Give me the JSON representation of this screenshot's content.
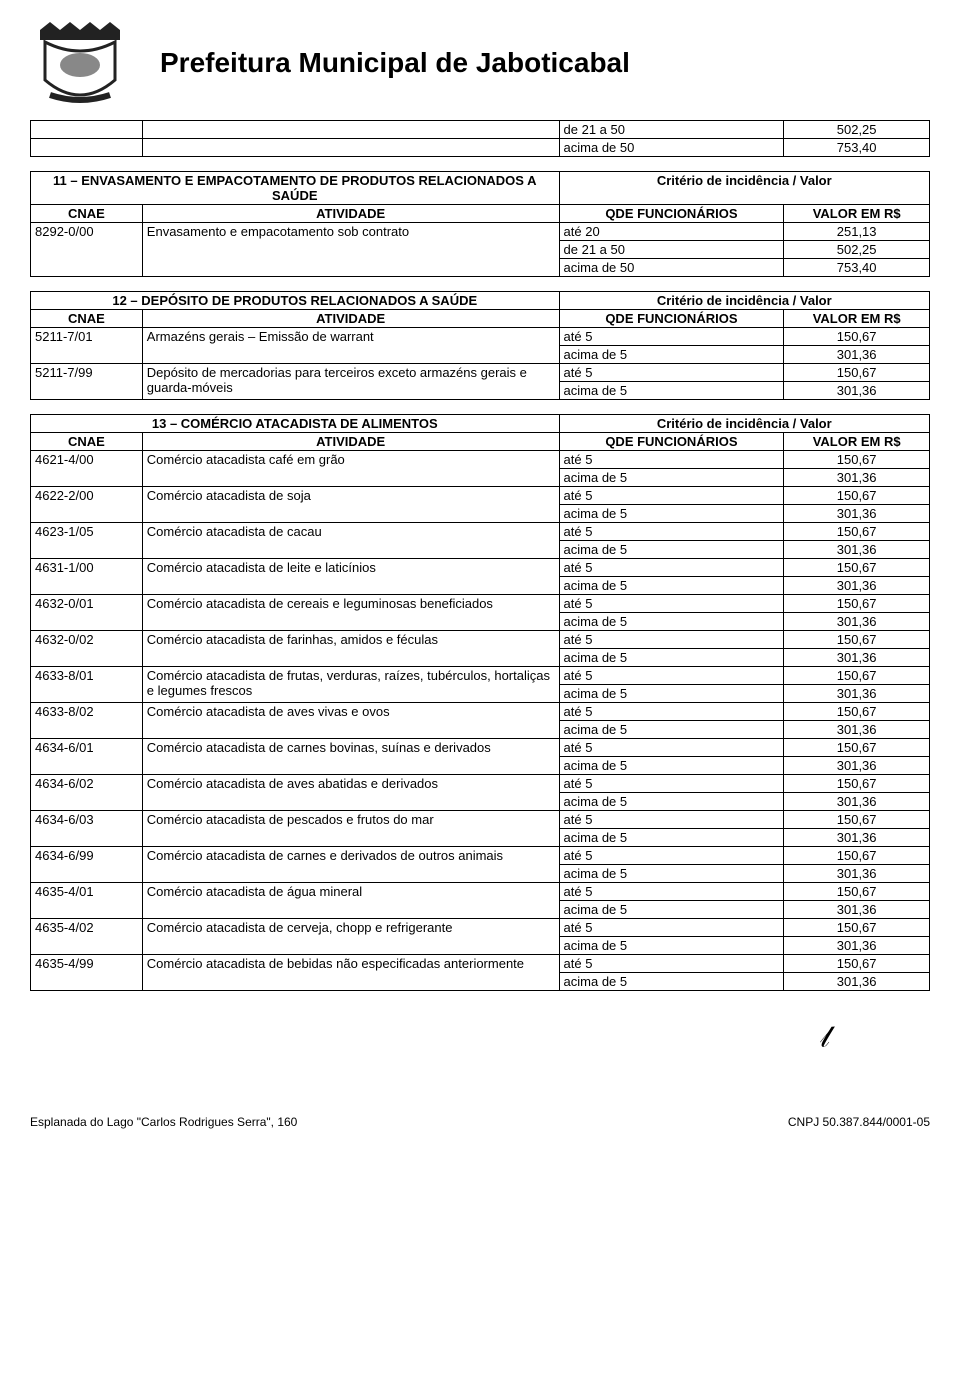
{
  "header": {
    "title": "Prefeitura Municipal de Jaboticabal"
  },
  "topFragment": {
    "rows": [
      {
        "qde": "de 21 a 50",
        "valor": "502,25"
      },
      {
        "qde": "acima de 50",
        "valor": "753,40"
      }
    ]
  },
  "blocks": [
    {
      "sectionTitle": "11 – ENVASAMENTO E EMPACOTAMENTO DE PRODUTOS RELACIONADOS A SAÚDE",
      "criterio": "Critério de incidência / Valor",
      "headers": {
        "cnae": "CNAE",
        "atividade": "ATIVIDADE",
        "qde": "QDE FUNCIONÁRIOS",
        "valor": "VALOR EM R$"
      },
      "rows": [
        {
          "cnae": "8292-0/00",
          "atividade": "Envasamento e empacotamento sob contrato",
          "tiers": [
            {
              "qde": "até 20",
              "valor": "251,13"
            },
            {
              "qde": "de 21 a 50",
              "valor": "502,25"
            },
            {
              "qde": "acima de 50",
              "valor": "753,40"
            }
          ]
        }
      ]
    },
    {
      "sectionTitle": "12 – DEPÓSITO DE PRODUTOS RELACIONADOS A SAÚDE",
      "criterio": "Critério de incidência / Valor",
      "headers": {
        "cnae": "CNAE",
        "atividade": "ATIVIDADE",
        "qde": "QDE FUNCIONÁRIOS",
        "valor": "VALOR EM R$"
      },
      "rows": [
        {
          "cnae": "5211-7/01",
          "atividade": "Armazéns gerais – Emissão de warrant",
          "tiers": [
            {
              "qde": "até 5",
              "valor": "150,67"
            },
            {
              "qde": "acima de 5",
              "valor": "301,36"
            }
          ]
        },
        {
          "cnae": "5211-7/99",
          "atividade": "Depósito de mercadorias para terceiros exceto armazéns gerais e guarda-móveis",
          "tiers": [
            {
              "qde": "até 5",
              "valor": "150,67"
            },
            {
              "qde": "acima de 5",
              "valor": "301,36"
            }
          ]
        }
      ]
    },
    {
      "sectionTitle": "13 – COMÉRCIO ATACADISTA DE ALIMENTOS",
      "criterio": "Critério de incidência / Valor",
      "headers": {
        "cnae": "CNAE",
        "atividade": "ATIVIDADE",
        "qde": "QDE FUNCIONÁRIOS",
        "valor": "VALOR EM R$"
      },
      "rows": [
        {
          "cnae": "4621-4/00",
          "atividade": "Comércio atacadista café em grão",
          "tiers": [
            {
              "qde": "até 5",
              "valor": "150,67"
            },
            {
              "qde": "acima de 5",
              "valor": "301,36"
            }
          ]
        },
        {
          "cnae": "4622-2/00",
          "atividade": "Comércio atacadista de soja",
          "tiers": [
            {
              "qde": "até 5",
              "valor": "150,67"
            },
            {
              "qde": "acima de 5",
              "valor": "301,36"
            }
          ]
        },
        {
          "cnae": "4623-1/05",
          "atividade": "Comércio atacadista de cacau",
          "tiers": [
            {
              "qde": "até 5",
              "valor": "150,67"
            },
            {
              "qde": "acima de 5",
              "valor": "301,36"
            }
          ]
        },
        {
          "cnae": "4631-1/00",
          "atividade": "Comércio atacadista de leite e laticínios",
          "tiers": [
            {
              "qde": "até 5",
              "valor": "150,67"
            },
            {
              "qde": "acima de 5",
              "valor": "301,36"
            }
          ]
        },
        {
          "cnae": "4632-0/01",
          "atividade": "Comércio atacadista de cereais e leguminosas beneficiados",
          "tiers": [
            {
              "qde": "até 5",
              "valor": "150,67"
            },
            {
              "qde": "acima de 5",
              "valor": "301,36"
            }
          ]
        },
        {
          "cnae": "4632-0/02",
          "atividade": "Comércio atacadista de farinhas, amidos e féculas",
          "tiers": [
            {
              "qde": "até 5",
              "valor": "150,67"
            },
            {
              "qde": "acima de 5",
              "valor": "301,36"
            }
          ]
        },
        {
          "cnae": "4633-8/01",
          "atividade": "Comércio atacadista de frutas, verduras, raízes, tubérculos, hortaliças e legumes frescos",
          "tiers": [
            {
              "qde": "até 5",
              "valor": "150,67"
            },
            {
              "qde": "acima de 5",
              "valor": "301,36"
            }
          ]
        },
        {
          "cnae": "4633-8/02",
          "atividade": "Comércio atacadista de aves vivas e ovos",
          "tiers": [
            {
              "qde": "até 5",
              "valor": "150,67"
            },
            {
              "qde": "acima de 5",
              "valor": "301,36"
            }
          ]
        },
        {
          "cnae": "4634-6/01",
          "atividade": "Comércio atacadista de carnes bovinas, suínas e derivados",
          "tiers": [
            {
              "qde": "até 5",
              "valor": "150,67"
            },
            {
              "qde": "acima de 5",
              "valor": "301,36"
            }
          ]
        },
        {
          "cnae": "4634-6/02",
          "atividade": "Comércio atacadista de aves abatidas e derivados",
          "tiers": [
            {
              "qde": "até 5",
              "valor": "150,67"
            },
            {
              "qde": "acima de 5",
              "valor": "301,36"
            }
          ]
        },
        {
          "cnae": "4634-6/03",
          "atividade": "Comércio atacadista de pescados e frutos do mar",
          "tiers": [
            {
              "qde": "até 5",
              "valor": "150,67"
            },
            {
              "qde": "acima de 5",
              "valor": "301,36"
            }
          ]
        },
        {
          "cnae": "4634-6/99",
          "atividade": "Comércio atacadista de carnes e derivados de outros animais",
          "tiers": [
            {
              "qde": "até 5",
              "valor": "150,67"
            },
            {
              "qde": "acima de 5",
              "valor": "301,36"
            }
          ]
        },
        {
          "cnae": "4635-4/01",
          "atividade": "Comércio atacadista de água mineral",
          "tiers": [
            {
              "qde": "até 5",
              "valor": "150,67"
            },
            {
              "qde": "acima de 5",
              "valor": "301,36"
            }
          ]
        },
        {
          "cnae": "4635-4/02",
          "atividade": "Comércio atacadista de cerveja, chopp e refrigerante",
          "tiers": [
            {
              "qde": "até 5",
              "valor": "150,67"
            },
            {
              "qde": "acima de 5",
              "valor": "301,36"
            }
          ]
        },
        {
          "cnae": "4635-4/99",
          "atividade": "Comércio atacadista de bebidas não especificadas anteriormente",
          "tiers": [
            {
              "qde": "até 5",
              "valor": "150,67"
            },
            {
              "qde": "acima de 5",
              "valor": "301,36"
            }
          ]
        }
      ]
    }
  ],
  "footer": {
    "address": "Esplanada do Lago \"Carlos Rodrigues Serra\", 160",
    "cnpj": "CNPJ 50.387.844/0001-05"
  }
}
